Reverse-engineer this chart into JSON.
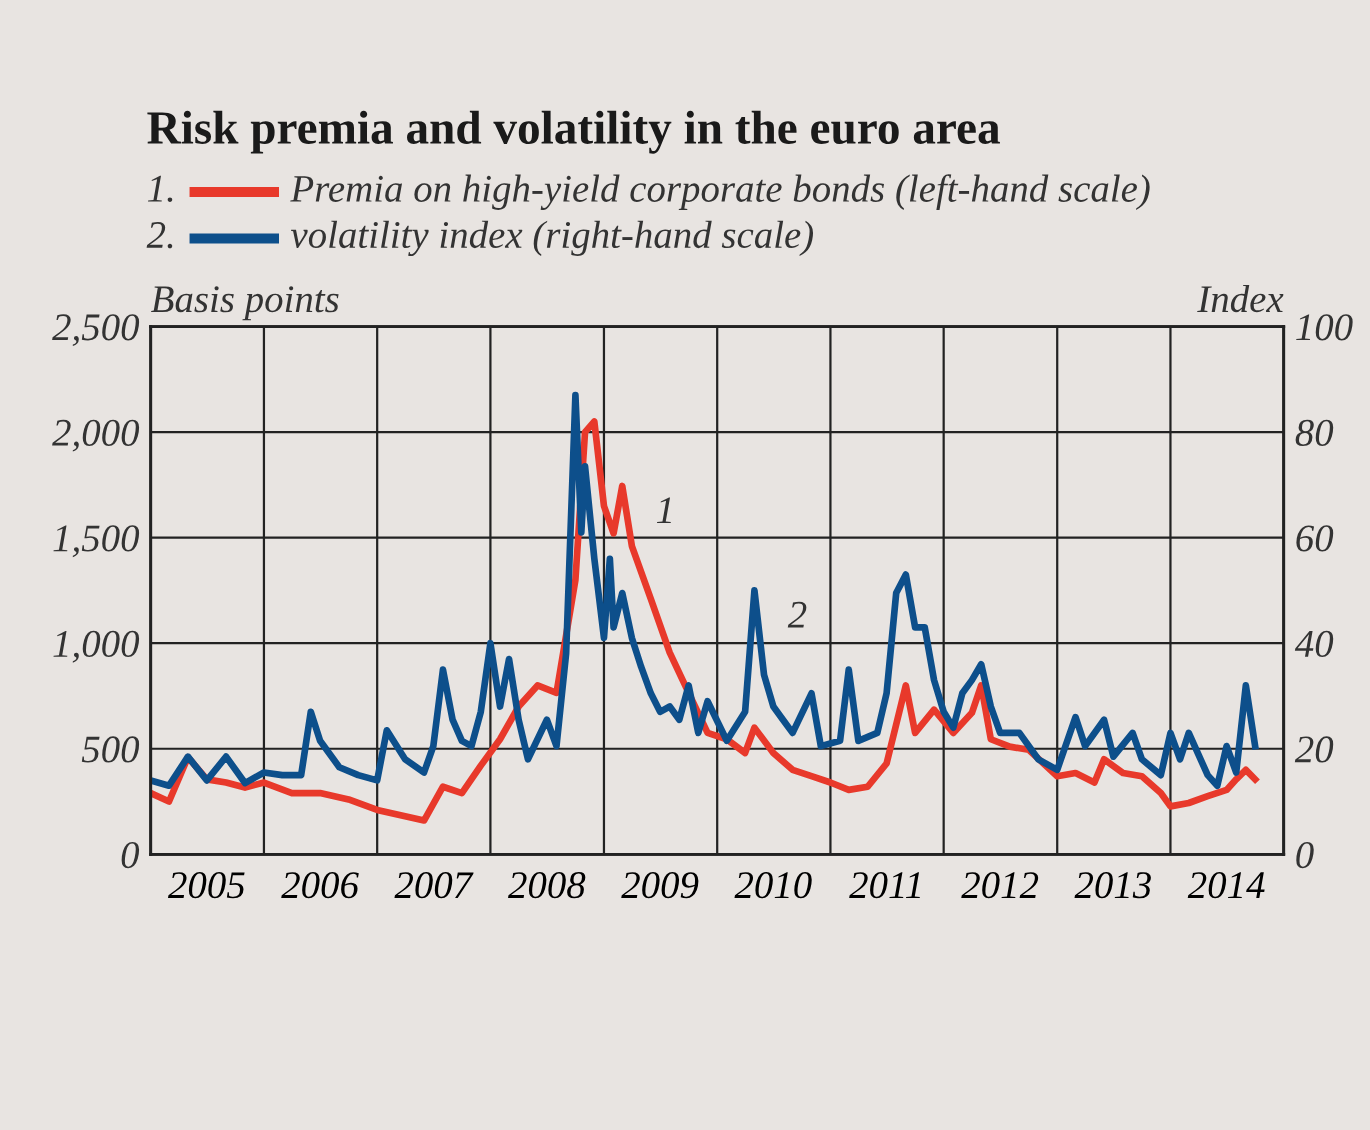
{
  "chart_data": {
    "type": "line",
    "title": "Risk premia and volatility in the euro area",
    "ylabel": "Basis points",
    "y2label": "Index",
    "xlim": [
      "2005-01-01",
      "2015-01-01"
    ],
    "xticks": [
      {
        "value": "2005-07-01",
        "label": "2005"
      },
      {
        "value": "2006-01-01",
        "label": null
      },
      {
        "value": "2006-07-01",
        "label": "2006"
      },
      {
        "value": "2007-01-01",
        "label": null
      },
      {
        "value": "2007-07-01",
        "label": "2007"
      },
      {
        "value": "2008-01-01",
        "label": null
      },
      {
        "value": "2008-07-01",
        "label": "2008"
      },
      {
        "value": "2009-01-01",
        "label": null
      },
      {
        "value": "2009-07-01",
        "label": "2009"
      },
      {
        "value": "2010-01-01",
        "label": null
      },
      {
        "value": "2010-07-01",
        "label": "2010"
      },
      {
        "value": "2011-01-01",
        "label": null
      },
      {
        "value": "2011-07-01",
        "label": "2011"
      },
      {
        "value": "2012-01-01",
        "label": null
      },
      {
        "value": "2012-07-01",
        "label": "2012"
      },
      {
        "value": "2013-01-01",
        "label": null
      },
      {
        "value": "2013-07-01",
        "label": "2013"
      },
      {
        "value": "2014-01-01",
        "label": null
      },
      {
        "value": "2014-07-01",
        "label": "2014"
      }
    ],
    "ylim": [
      0,
      2500
    ],
    "yticks": [
      0,
      500,
      {
        "value": 1000,
        "label": "1,000"
      },
      {
        "value": 1500,
        "label": "1,500"
      },
      {
        "value": 2000,
        "label": "2,000"
      },
      {
        "value": 2500,
        "label": "2,500"
      }
    ],
    "y2lim": [
      0,
      100
    ],
    "y2ticks": [
      0,
      20,
      40,
      60,
      80,
      100
    ],
    "grid": true,
    "legend": "top left",
    "line_style": "solid",
    "marker": "none",
    "series": [
      {
        "name": "Premia on high-yield corporate bonds (left-hand scale)",
        "color": "#e8392b",
        "x": [
          "2005-01-01",
          "2005-03-01",
          "2005-05-01",
          "2005-07-01",
          "2005-09-01",
          "2005-11-01",
          "2006-01-01",
          "2006-04-01",
          "2006-07-01",
          "2006-10-01",
          "2007-01-01",
          "2007-04-01",
          "2007-06-01",
          "2007-08-01",
          "2007-10-01",
          "2007-12-01",
          "2008-02-01",
          "2008-04-01",
          "2008-06-01",
          "2008-08-01",
          "2008-10-01",
          "2008-11-01",
          "2008-12-01",
          "2009-01-01",
          "2009-02-01",
          "2009-03-01",
          "2009-04-01",
          "2009-06-01",
          "2009-08-01",
          "2009-10-01",
          "2009-12-01",
          "2010-02-01",
          "2010-04-01",
          "2010-05-01",
          "2010-07-01",
          "2010-09-01",
          "2010-11-01",
          "2011-01-01",
          "2011-03-01",
          "2011-05-01",
          "2011-07-01",
          "2011-09-01",
          "2011-10-01",
          "2011-12-01",
          "2012-02-01",
          "2012-04-01",
          "2012-05-01",
          "2012-06-01",
          "2012-08-01",
          "2012-10-01",
          "2013-01-01",
          "2013-03-01",
          "2013-05-01",
          "2013-06-01",
          "2013-08-01",
          "2013-10-01",
          "2013-12-01",
          "2014-01-01",
          "2014-03-01",
          "2014-05-01",
          "2014-07-01",
          "2014-08-01",
          "2014-09-01",
          "2014-10-01"
        ],
        "values": [
          290,
          250,
          460,
          355,
          340,
          316,
          340,
          290,
          290,
          260,
          210,
          180,
          160,
          320,
          290,
          420,
          545,
          700,
          800,
          765,
          1300,
          2000,
          2050,
          1650,
          1520,
          1745,
          1460,
          1210,
          955,
          765,
          575,
          545,
          480,
          600,
          480,
          400,
          370,
          340,
          305,
          320,
          430,
          800,
          575,
          685,
          575,
          670,
          800,
          545,
          510,
          495,
          370,
          385,
          340,
          450,
          385,
          370,
          290,
          227,
          243,
          275,
          305,
          355,
          400,
          355
        ]
      },
      {
        "name": "volatility index (right-hand scale)",
        "color": "#0d4f8b",
        "axis": "y2",
        "x": [
          "2005-01-01",
          "2005-03-01",
          "2005-05-01",
          "2005-07-01",
          "2005-09-01",
          "2005-11-01",
          "2006-01-01",
          "2006-03-01",
          "2006-05-01",
          "2006-06-01",
          "2006-07-01",
          "2006-09-01",
          "2006-11-01",
          "2007-01-01",
          "2007-02-01",
          "2007-04-01",
          "2007-06-01",
          "2007-07-01",
          "2007-08-01",
          "2007-09-01",
          "2007-10-01",
          "2007-11-01",
          "2007-12-01",
          "2008-01-01",
          "2008-02-01",
          "2008-03-01",
          "2008-04-01",
          "2008-05-01",
          "2008-07-01",
          "2008-08-01",
          "2008-09-01",
          "2008-10-01",
          "2008-10-20",
          "2008-11-01",
          "2008-12-01",
          "2009-01-01",
          "2009-01-20",
          "2009-02-01",
          "2009-03-01",
          "2009-04-01",
          "2009-05-01",
          "2009-06-01",
          "2009-07-01",
          "2009-08-01",
          "2009-09-01",
          "2009-10-01",
          "2009-11-01",
          "2009-12-01",
          "2010-02-01",
          "2010-04-01",
          "2010-05-01",
          "2010-06-01",
          "2010-07-01",
          "2010-08-01",
          "2010-09-01",
          "2010-11-01",
          "2010-12-01",
          "2011-02-01",
          "2011-03-01",
          "2011-04-01",
          "2011-06-01",
          "2011-07-01",
          "2011-08-01",
          "2011-09-01",
          "2011-10-01",
          "2011-11-01",
          "2011-12-01",
          "2012-01-01",
          "2012-02-01",
          "2012-03-01",
          "2012-04-01",
          "2012-05-01",
          "2012-06-01",
          "2012-07-01",
          "2012-09-01",
          "2012-11-01",
          "2013-01-01",
          "2013-03-01",
          "2013-04-01",
          "2013-06-01",
          "2013-07-01",
          "2013-09-01",
          "2013-10-01",
          "2013-12-01",
          "2014-01-01",
          "2014-02-01",
          "2014-03-01",
          "2014-05-01",
          "2014-06-01",
          "2014-07-01",
          "2014-08-01",
          "2014-09-01",
          "2014-10-01"
        ],
        "values": [
          14,
          13,
          18.5,
          14,
          18.5,
          13.5,
          15.5,
          15,
          15,
          27,
          21.5,
          16.5,
          15,
          14,
          23.5,
          18,
          15.5,
          20.5,
          35,
          25.5,
          21.5,
          20.5,
          27,
          40,
          28,
          37,
          25.5,
          18,
          25.5,
          20.5,
          38,
          87,
          61,
          73.5,
          56,
          41,
          56,
          43,
          49.5,
          41,
          35.5,
          30.5,
          27,
          28,
          25.5,
          32,
          23,
          29,
          21.5,
          27,
          50,
          34,
          28,
          25.5,
          23,
          30.5,
          20.5,
          21.5,
          35,
          21.5,
          23,
          30.5,
          49.5,
          53,
          43,
          43,
          33,
          27,
          24,
          30.5,
          33,
          36,
          28,
          23,
          23,
          18,
          16,
          26,
          20.5,
          25.5,
          18.5,
          23,
          18,
          15,
          23,
          18,
          23,
          15,
          13,
          20.5,
          15.5,
          32,
          20.5
        ]
      }
    ],
    "annotations": [
      "1.",
      "2.",
      {
        "text": "1",
        "x": "2009-03-01",
        "y": 1745
      },
      {
        "text": "2",
        "x": "2010-05-01",
        "y": 1250
      }
    ]
  }
}
